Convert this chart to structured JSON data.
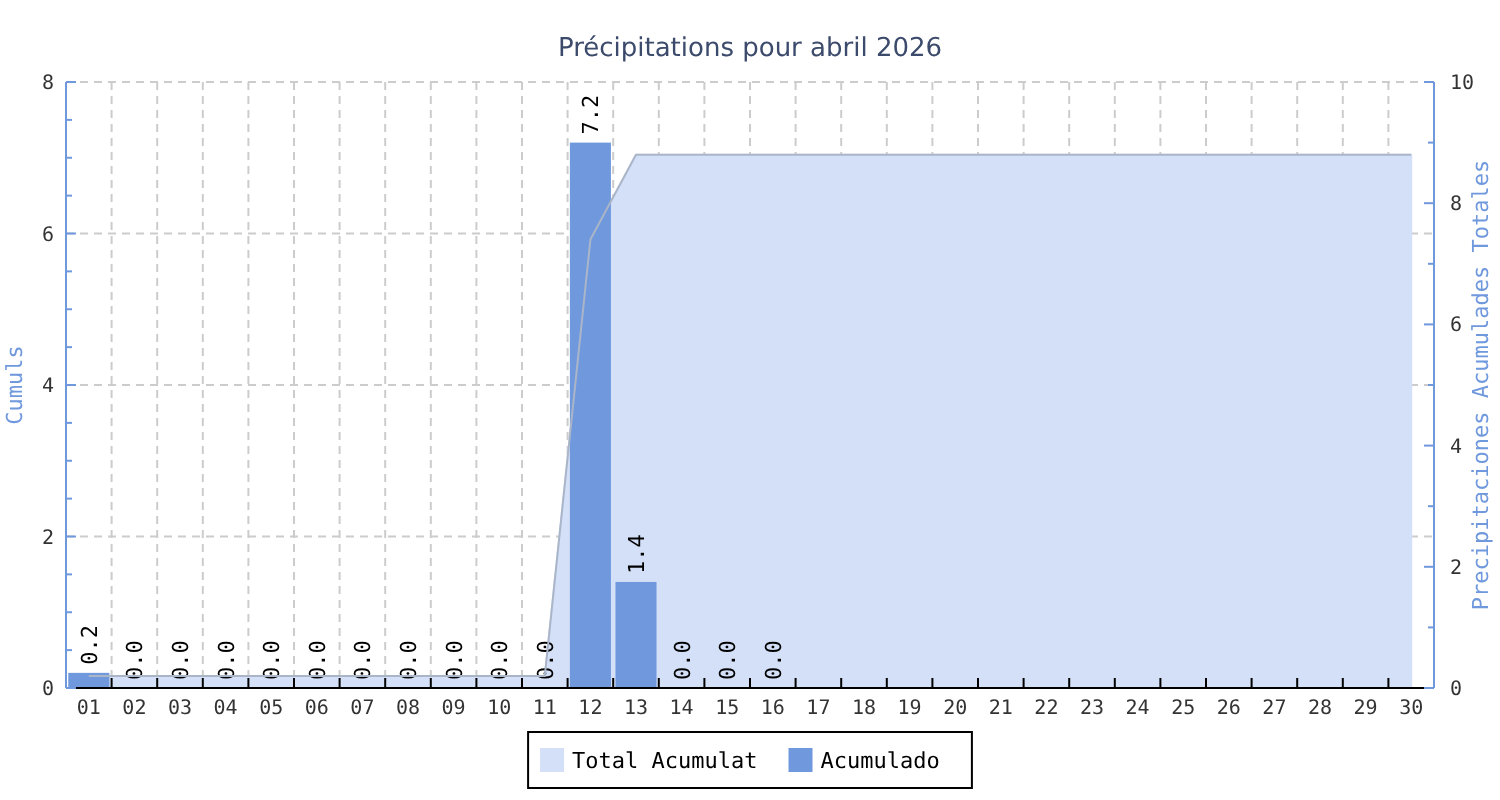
{
  "chart_data": {
    "type": "bar",
    "title": "Précipitations pour abril 2026",
    "ylabel": "Cumuls",
    "y2label": "Precipitaciones Acumulades Totales",
    "categories": [
      "01",
      "02",
      "03",
      "04",
      "05",
      "06",
      "07",
      "08",
      "09",
      "10",
      "11",
      "12",
      "13",
      "14",
      "15",
      "16",
      "17",
      "18",
      "19",
      "20",
      "21",
      "22",
      "23",
      "24",
      "25",
      "26",
      "27",
      "28",
      "29",
      "30"
    ],
    "series": [
      {
        "name": "Total Acumulat",
        "type": "area",
        "axis": "y2",
        "color": "#d3e0f8",
        "values": [
          0.2,
          0.2,
          0.2,
          0.2,
          0.2,
          0.2,
          0.2,
          0.2,
          0.2,
          0.2,
          0.2,
          7.4,
          8.8,
          8.8,
          8.8,
          8.8,
          8.8,
          8.8,
          8.8,
          8.8,
          8.8,
          8.8,
          8.8,
          8.8,
          8.8,
          8.8,
          8.8,
          8.8,
          8.8,
          8.8
        ]
      },
      {
        "name": "Acumulado",
        "color": "#6f98dd",
        "values": [
          0.2,
          0.0,
          0.0,
          0.0,
          0.0,
          0.0,
          0.0,
          0.0,
          0.0,
          0.0,
          0.0,
          7.2,
          1.4,
          0.0,
          0.0,
          0.0,
          null,
          null,
          null,
          null,
          null,
          null,
          null,
          null,
          null,
          null,
          null,
          null,
          null,
          null
        ],
        "value_labels": [
          "0.2",
          "0.0",
          "0.0",
          "0.0",
          "0.0",
          "0.0",
          "0.0",
          "0.0",
          "0.0",
          "0.0",
          "0.0",
          "7.2",
          "1.4",
          "0.0",
          "0.0",
          "0.0",
          null,
          null,
          null,
          null,
          null,
          null,
          null,
          null,
          null,
          null,
          null,
          null,
          null,
          null
        ]
      }
    ],
    "ylim": [
      0,
      8
    ],
    "yticks": [
      0,
      {
        "value": 0.5,
        "label": null
      },
      {
        "value": 1,
        "label": null
      },
      {
        "value": 1.5,
        "label": null
      },
      2,
      {
        "value": 2.5,
        "label": null
      },
      {
        "value": 3,
        "label": null
      },
      {
        "value": 3.5,
        "label": null
      },
      4,
      {
        "value": 4.5,
        "label": null
      },
      {
        "value": 5,
        "label": null
      },
      {
        "value": 5.5,
        "label": null
      },
      6,
      {
        "value": 6.5,
        "label": null
      },
      {
        "value": 7,
        "label": null
      },
      {
        "value": 7.5,
        "label": null
      },
      8
    ],
    "y2lim": [
      0,
      10
    ],
    "y2ticks": [
      0,
      {
        "value": 1,
        "label": null
      },
      2,
      {
        "value": 3,
        "label": null
      },
      4,
      {
        "value": 5,
        "label": null
      },
      6,
      {
        "value": 7,
        "label": null
      },
      8,
      {
        "value": 9,
        "label": null
      },
      10
    ],
    "grid": true,
    "legend": "bottom"
  }
}
